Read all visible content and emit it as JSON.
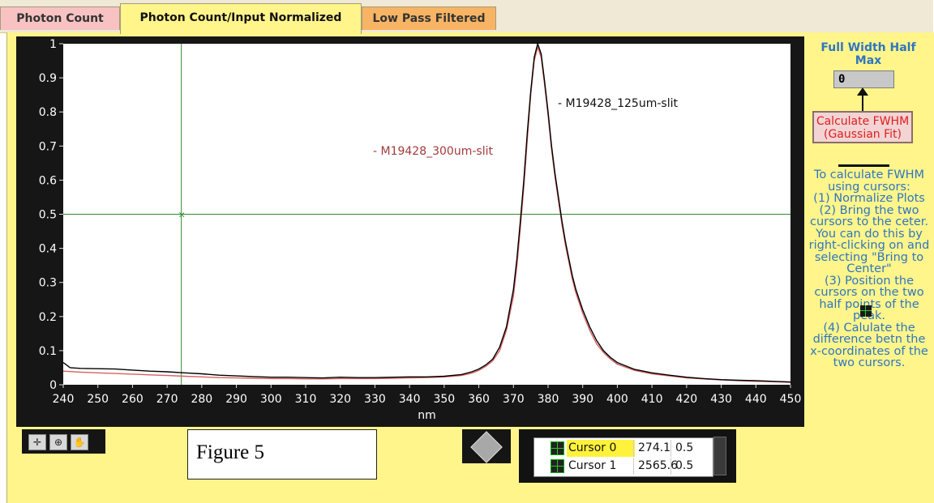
{
  "tabs": [
    {
      "label": "Photon Count"
    },
    {
      "label": "Photon Count/Input Normalized"
    },
    {
      "label": "Low Pass Filtered"
    }
  ],
  "figure_label": "Figure 5",
  "right_panel": {
    "fwhm_title": "Full Width Half Max",
    "fwhm_value": "0",
    "calc_button": "Calculate FWHM (Gaussian Fit)",
    "instructions": [
      "To calculate FWHM using cursors:",
      "(1) Normalize Plots",
      "(2) Bring the two cursors to the ceter. You can do this by right-clicking on and selecting \"Bring to Center\"",
      "(3) Position the cursors on the two half points of the peak.",
      "(4) Calulate the difference betn the x-coordinates of the two cursors."
    ]
  },
  "cursor_legend": {
    "rows": [
      {
        "name": "Cursor 0",
        "x": "274.1",
        "y": "0.5"
      },
      {
        "name": "Cursor 1",
        "x": "2565.6",
        "y": "0.5"
      }
    ]
  },
  "colors": {
    "plot_bg": "#ffffff",
    "frame": "#161616",
    "series_125um": "#000000",
    "series_300um": "#d96060",
    "cursor": "#2e8b2e",
    "panel": "#fff58a",
    "instruction_text": "#2e75c2",
    "button_text": "#e01d1d"
  },
  "chart_data": {
    "type": "line",
    "xlabel": "nm",
    "ylabel": "",
    "xlim": [
      240,
      450
    ],
    "ylim": [
      0,
      1
    ],
    "xticks": [
      240,
      250,
      260,
      270,
      280,
      290,
      300,
      310,
      320,
      330,
      340,
      350,
      360,
      370,
      380,
      390,
      400,
      410,
      420,
      430,
      440,
      450
    ],
    "yticks": [
      0,
      0.1,
      0.2,
      0.3,
      0.4,
      0.5,
      0.6,
      0.7,
      0.8,
      0.9,
      1
    ],
    "grid": false,
    "series": [
      {
        "name": "M19428_125um-slit",
        "color": "#000000",
        "x": [
          240,
          242,
          245,
          250,
          255,
          260,
          265,
          270,
          275,
          280,
          285,
          290,
          295,
          300,
          305,
          310,
          315,
          320,
          325,
          330,
          335,
          340,
          345,
          350,
          355,
          358,
          360,
          362,
          364,
          366,
          368,
          370,
          371,
          372,
          373,
          374,
          375,
          376,
          377,
          378,
          379,
          380,
          381,
          382,
          383,
          384,
          385,
          386,
          387,
          388,
          390,
          392,
          394,
          396,
          398,
          400,
          405,
          410,
          415,
          420,
          425,
          430,
          435,
          440,
          445,
          450
        ],
        "y": [
          0.065,
          0.05,
          0.048,
          0.047,
          0.046,
          0.043,
          0.04,
          0.038,
          0.035,
          0.032,
          0.028,
          0.026,
          0.024,
          0.022,
          0.022,
          0.021,
          0.02,
          0.022,
          0.021,
          0.021,
          0.022,
          0.023,
          0.023,
          0.025,
          0.03,
          0.038,
          0.046,
          0.058,
          0.075,
          0.11,
          0.17,
          0.28,
          0.37,
          0.48,
          0.6,
          0.74,
          0.86,
          0.96,
          1.0,
          0.97,
          0.89,
          0.8,
          0.7,
          0.62,
          0.55,
          0.48,
          0.42,
          0.37,
          0.32,
          0.28,
          0.22,
          0.17,
          0.13,
          0.1,
          0.08,
          0.065,
          0.045,
          0.035,
          0.028,
          0.022,
          0.018,
          0.015,
          0.013,
          0.012,
          0.01,
          0.008
        ]
      },
      {
        "name": "M19428_300um-slit",
        "color": "#d96060",
        "x": [
          240,
          245,
          250,
          255,
          260,
          265,
          270,
          275,
          280,
          285,
          290,
          295,
          300,
          305,
          310,
          315,
          320,
          325,
          330,
          335,
          340,
          345,
          350,
          355,
          358,
          360,
          362,
          364,
          366,
          368,
          370,
          371,
          372,
          373,
          374,
          375,
          376,
          377,
          378,
          379,
          380,
          381,
          382,
          383,
          384,
          385,
          386,
          387,
          388,
          390,
          392,
          394,
          396,
          398,
          400,
          405,
          410,
          415,
          420,
          425,
          430,
          435,
          440,
          445,
          450
        ],
        "y": [
          0.04,
          0.037,
          0.035,
          0.033,
          0.031,
          0.029,
          0.027,
          0.025,
          0.023,
          0.021,
          0.02,
          0.019,
          0.018,
          0.018,
          0.017,
          0.017,
          0.018,
          0.018,
          0.018,
          0.019,
          0.02,
          0.021,
          0.023,
          0.027,
          0.034,
          0.042,
          0.054,
          0.07,
          0.1,
          0.16,
          0.26,
          0.35,
          0.46,
          0.58,
          0.72,
          0.85,
          0.95,
          0.99,
          0.96,
          0.88,
          0.79,
          0.69,
          0.61,
          0.54,
          0.47,
          0.41,
          0.36,
          0.31,
          0.27,
          0.21,
          0.16,
          0.12,
          0.095,
          0.075,
          0.06,
          0.042,
          0.032,
          0.026,
          0.02,
          0.017,
          0.014,
          0.012,
          0.01,
          0.009,
          0.007
        ]
      }
    ],
    "series_labels": [
      "- M19428_125um-slit",
      "- M19428_300um-slit"
    ],
    "cursor_lines": [
      {
        "name": "Cursor 0",
        "x": 274.1,
        "y": 0.5
      }
    ]
  }
}
